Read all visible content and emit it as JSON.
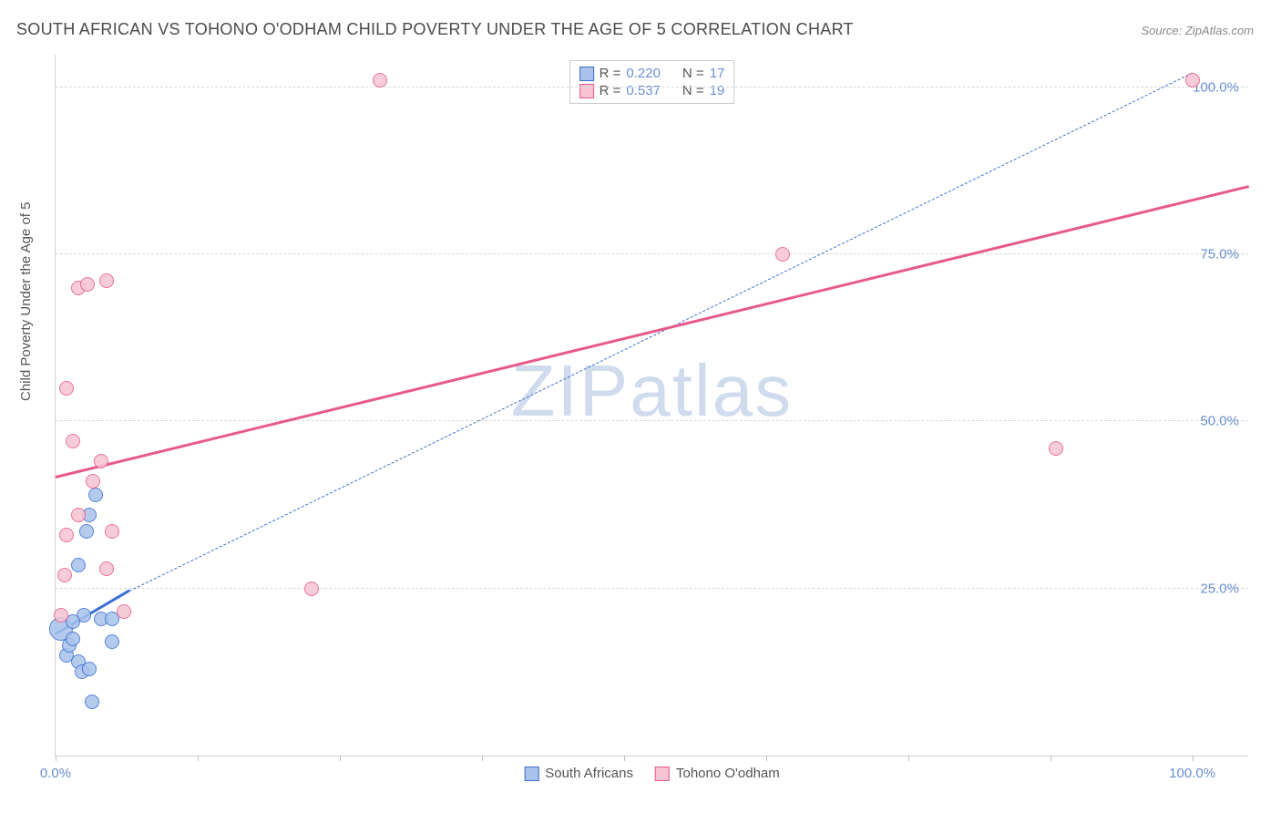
{
  "title": "SOUTH AFRICAN VS TOHONO O'ODHAM CHILD POVERTY UNDER THE AGE OF 5 CORRELATION CHART",
  "source": "Source: ZipAtlas.com",
  "ylabel": "Child Poverty Under the Age of 5",
  "watermark_a": "ZIP",
  "watermark_b": "atlas",
  "chart": {
    "type": "scatter",
    "xlim": [
      0,
      105
    ],
    "ylim": [
      0,
      105
    ],
    "y_gridlines": [
      25,
      50,
      75,
      100
    ],
    "y_tick_labels": [
      "25.0%",
      "50.0%",
      "75.0%",
      "100.0%"
    ],
    "x_ticks": [
      0,
      12.5,
      25,
      37.5,
      50,
      62.5,
      75,
      87.5,
      100
    ],
    "x_tick_labels": {
      "0": "0.0%",
      "100": "100.0%"
    },
    "background_color": "#ffffff",
    "grid_color": "#d8d8d8",
    "axis_color": "#d0d0d0",
    "tick_label_color": "#6b8fd4",
    "marker_radius": 8,
    "marker_stroke_width": 1.5,
    "marker_opacity_fill": 0.25,
    "series": [
      {
        "name": "South Africans",
        "color_stroke": "#3b6fd1",
        "color_fill": "#a9c3ec",
        "r": "0.220",
        "n": "17",
        "trend": {
          "x1": 0,
          "y1": 18,
          "x2": 6.5,
          "y2": 24.5,
          "dashed_extend_to_x": 100,
          "dashed_extend_to_y": 102,
          "width": 3,
          "dash_width": 1.5
        },
        "points": [
          {
            "x": 0.5,
            "y": 19,
            "r": 13
          },
          {
            "x": 1.0,
            "y": 15
          },
          {
            "x": 1.2,
            "y": 16.5
          },
          {
            "x": 1.5,
            "y": 17.5
          },
          {
            "x": 2.0,
            "y": 14
          },
          {
            "x": 2.3,
            "y": 12.5
          },
          {
            "x": 3.0,
            "y": 13
          },
          {
            "x": 3.2,
            "y": 8
          },
          {
            "x": 2.0,
            "y": 28.5
          },
          {
            "x": 3.0,
            "y": 36
          },
          {
            "x": 3.5,
            "y": 39
          },
          {
            "x": 4.0,
            "y": 20.5
          },
          {
            "x": 5.0,
            "y": 20.5
          },
          {
            "x": 5.0,
            "y": 17
          },
          {
            "x": 2.5,
            "y": 21
          },
          {
            "x": 2.7,
            "y": 33.5
          },
          {
            "x": 1.5,
            "y": 20
          }
        ]
      },
      {
        "name": "Tohono O'odham",
        "color_stroke": "#e75a8a",
        "color_fill": "#f6c4d3",
        "r": "0.537",
        "n": "19",
        "trend": {
          "x1": 0,
          "y1": 41.5,
          "x2": 105,
          "y2": 85,
          "width": 3
        },
        "points": [
          {
            "x": 0.5,
            "y": 21
          },
          {
            "x": 0.8,
            "y": 27
          },
          {
            "x": 1.0,
            "y": 33
          },
          {
            "x": 1.5,
            "y": 47
          },
          {
            "x": 1.0,
            "y": 55
          },
          {
            "x": 2.0,
            "y": 36
          },
          {
            "x": 2.0,
            "y": 70
          },
          {
            "x": 2.8,
            "y": 70.5
          },
          {
            "x": 3.3,
            "y": 41
          },
          {
            "x": 4.0,
            "y": 44
          },
          {
            "x": 4.5,
            "y": 28
          },
          {
            "x": 4.5,
            "y": 71
          },
          {
            "x": 5.0,
            "y": 33.5
          },
          {
            "x": 6.0,
            "y": 21.5
          },
          {
            "x": 22.5,
            "y": 25
          },
          {
            "x": 28.5,
            "y": 101
          },
          {
            "x": 64,
            "y": 75
          },
          {
            "x": 88,
            "y": 46
          },
          {
            "x": 100,
            "y": 101
          }
        ]
      }
    ]
  },
  "legend_top_label_r": "R =",
  "legend_top_label_n": "N ="
}
